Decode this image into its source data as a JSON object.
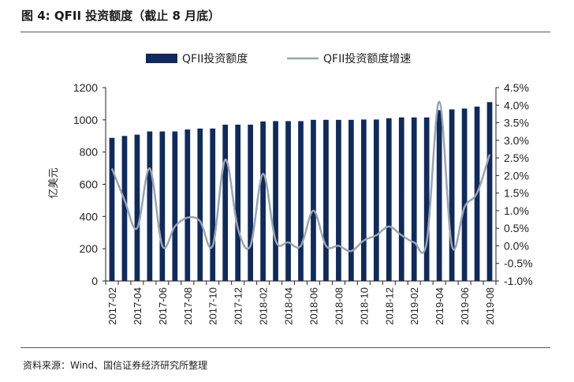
{
  "figure": {
    "title": "图 4:  QFII 投资额度（截止 8 月底）",
    "source": "资料来源：Wind、国信证券经济研究所整理"
  },
  "colors": {
    "bar": "#0f2a5c",
    "line": "#9aa4ae",
    "rule": "#555555"
  },
  "chart_data": {
    "type": "bar",
    "x": [
      "2017-02",
      "2017-03",
      "2017-04",
      "2017-05",
      "2017-06",
      "2017-07",
      "2017-08",
      "2017-09",
      "2017-10",
      "2017-11",
      "2017-12",
      "2018-01",
      "2018-02",
      "2018-03",
      "2018-04",
      "2018-05",
      "2018-06",
      "2018-07",
      "2018-08",
      "2018-09",
      "2018-10",
      "2018-11",
      "2018-12",
      "2019-01",
      "2019-02",
      "2019-03",
      "2019-04",
      "2019-05",
      "2019-06",
      "2019-07",
      "2019-08"
    ],
    "x_tick_labels": [
      "2017-02",
      "2017-04",
      "2017-06",
      "2017-08",
      "2017-10",
      "2017-12",
      "2018-02",
      "2018-04",
      "2018-06",
      "2018-08",
      "2018-10",
      "2018-12",
      "2019-02",
      "2019-04",
      "2019-06",
      "2019-08"
    ],
    "ylabel": "亿美元",
    "ylim": [
      0,
      1200
    ],
    "yticks": [
      "0",
      "200",
      "400",
      "600",
      "800",
      "1000",
      "1200"
    ],
    "y2lim": [
      -1.0,
      4.5
    ],
    "y2ticks": [
      "-1.0%",
      "-0.5%",
      "0.0%",
      "0.5%",
      "1.0%",
      "1.5%",
      "2.0%",
      "2.5%",
      "3.0%",
      "3.5%",
      "4.0%",
      "4.5%"
    ],
    "legend_position": "top",
    "series": [
      {
        "name": "QFII投资额度",
        "type": "bar",
        "axis": "left",
        "values": [
          888,
          900,
          908,
          928,
          928,
          928,
          940,
          946,
          946,
          970,
          970,
          970,
          990,
          992,
          992,
          992,
          1000,
          1000,
          1000,
          1000,
          1002,
          1002,
          1010,
          1015,
          1015,
          1015,
          1060,
          1065,
          1070,
          1082,
          1110
        ]
      },
      {
        "name": "QFII投资额度增速",
        "type": "line",
        "axis": "right",
        "values": [
          2.2,
          1.3,
          0.5,
          2.2,
          0.0,
          0.55,
          0.8,
          0.7,
          0.0,
          2.45,
          0.5,
          0.0,
          2.05,
          0.15,
          0.1,
          0.0,
          1.0,
          0.0,
          0.0,
          -0.15,
          0.15,
          0.3,
          0.55,
          0.3,
          0.1,
          0.1,
          4.1,
          0.0,
          1.1,
          1.5,
          2.6
        ]
      }
    ]
  }
}
